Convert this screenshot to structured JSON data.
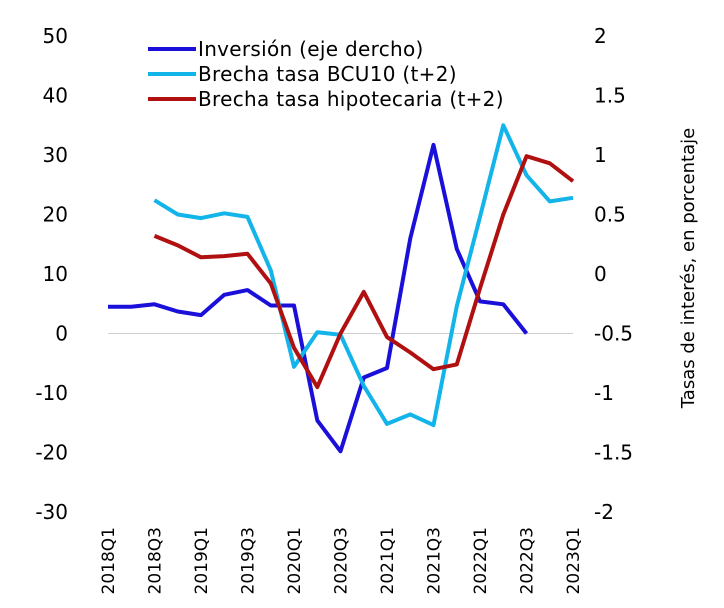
{
  "chart_data": {
    "type": "line",
    "title": "",
    "y2label": "Tasas de interés, en porcentaje",
    "ylim": [
      -30,
      50
    ],
    "y2lim": [
      -2,
      2
    ],
    "yticks": [
      "50",
      "40",
      "30",
      "20",
      "10",
      "0",
      "-10",
      "-20",
      "-30"
    ],
    "y2ticks": [
      "2",
      "1.5",
      "1",
      "0.5",
      "0",
      "-0.5",
      "-1",
      "-1.5",
      "-2"
    ],
    "x": [
      "2018Q1",
      "2018Q2",
      "2018Q3",
      "2018Q4",
      "2019Q1",
      "2019Q2",
      "2019Q3",
      "2019Q4",
      "2020Q1",
      "2020Q2",
      "2020Q3",
      "2020Q4",
      "2021Q1",
      "2021Q2",
      "2021Q3",
      "2021Q4",
      "2022Q1",
      "2022Q2",
      "2022Q3",
      "2022Q4",
      "2023Q1"
    ],
    "xticklabels": [
      "2018Q1",
      "2018Q3",
      "2019Q1",
      "2019Q3",
      "2020Q1",
      "2020Q3",
      "2021Q1",
      "2021Q3",
      "2022Q1",
      "2022Q3",
      "2023Q1"
    ],
    "legend_position": "top-left",
    "series": [
      {
        "name": "Inversión (eje dercho)",
        "axis": "left",
        "color": "#1a10d9",
        "values": [
          4.5,
          4.5,
          4.9,
          3.7,
          3.1,
          6.5,
          7.3,
          4.7,
          4.7,
          -14.6,
          -19.8,
          -7.4,
          -5.8,
          16.0,
          31.7,
          14.2,
          5.4,
          4.9,
          0.0,
          null,
          null
        ]
      },
      {
        "name": "Brecha tasa BCU10 (t+2)",
        "axis": "right",
        "color": "#12b4ea",
        "values": [
          null,
          null,
          0.62,
          0.5,
          0.47,
          0.51,
          0.48,
          0.03,
          -0.78,
          -0.49,
          -0.51,
          -0.94,
          -1.26,
          -1.18,
          -1.27,
          -0.27,
          0.48,
          1.25,
          0.83,
          0.61,
          0.64
        ]
      },
      {
        "name": "Brecha tasa hipotecaria (t+2)",
        "axis": "right",
        "color": "#b01010",
        "values": [
          null,
          null,
          0.32,
          0.24,
          0.14,
          0.15,
          0.17,
          -0.08,
          -0.62,
          -0.95,
          -0.5,
          -0.15,
          -0.53,
          -0.66,
          -0.8,
          -0.76,
          -0.12,
          0.5,
          0.99,
          0.93,
          0.78
        ]
      }
    ]
  }
}
